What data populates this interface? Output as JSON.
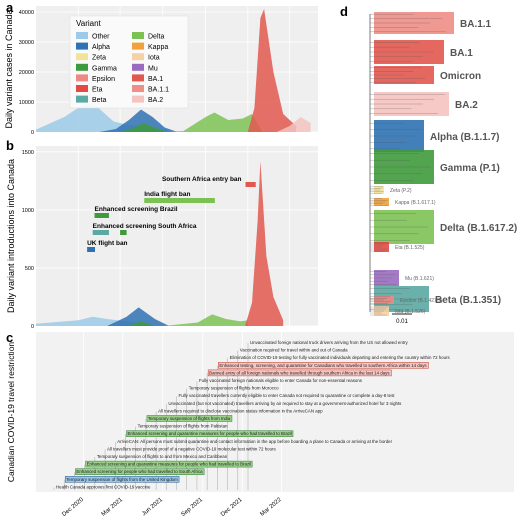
{
  "chart_data": [
    {
      "panel": "a",
      "type": "area",
      "ylabel": "Daily variant cases in Canada",
      "yticks": [
        0,
        10000,
        20000,
        30000,
        40000
      ],
      "ylim": [
        0,
        42000
      ],
      "grid": true,
      "legend": {
        "title": "Variant",
        "placement": "top-left",
        "entries": [
          {
            "name": "Other",
            "color": "#9ccae8"
          },
          {
            "name": "Alpha",
            "color": "#2f72b3"
          },
          {
            "name": "Zeta",
            "color": "#f3e39a"
          },
          {
            "name": "Gamma",
            "color": "#3f9a3c"
          },
          {
            "name": "Epsilon",
            "color": "#ec8a83"
          },
          {
            "name": "Eta",
            "color": "#e34a44"
          },
          {
            "name": "Beta",
            "color": "#5aa9a3"
          },
          {
            "name": "Delta",
            "color": "#7cc253"
          },
          {
            "name": "Kappa",
            "color": "#f2a23c"
          },
          {
            "name": "Iota",
            "color": "#f6d1a6"
          },
          {
            "name": "Mu",
            "color": "#9a6cc0"
          },
          {
            "name": "BA.1",
            "color": "#e2584f"
          },
          {
            "name": "BA.1.1",
            "color": "#ee8e86"
          },
          {
            "name": "BA.2",
            "color": "#f5c3c0"
          }
        ]
      },
      "series": [
        {
          "name": "Other",
          "x": [
            "2020-09-01",
            "2020-11-01",
            "2020-12-15",
            "2021-01-10",
            "2021-02-15",
            "2021-03-15",
            "2021-04-10",
            "2021-05-15",
            "2021-06-30",
            "2021-08-15",
            "2021-10-01",
            "2021-11-15",
            "2022-02-01",
            "2022-04-01"
          ],
          "values": [
            800,
            5000,
            9500,
            8500,
            3500,
            2500,
            2000,
            1000,
            200,
            100,
            100,
            100,
            100,
            100
          ]
        },
        {
          "name": "Alpha",
          "x": [
            "2021-01-15",
            "2021-02-20",
            "2021-03-20",
            "2021-04-15",
            "2021-05-10",
            "2021-06-05",
            "2021-07-01"
          ],
          "values": [
            0,
            1000,
            4000,
            7500,
            5000,
            1500,
            100
          ]
        },
        {
          "name": "Gamma",
          "x": [
            "2021-03-01",
            "2021-04-01",
            "2021-04-20",
            "2021-05-15",
            "2021-06-10"
          ],
          "values": [
            0,
            1500,
            3000,
            1500,
            0
          ]
        },
        {
          "name": "Delta",
          "x": [
            "2021-06-01",
            "2021-07-15",
            "2021-09-01",
            "2021-09-20",
            "2021-10-20",
            "2021-11-20",
            "2021-12-10",
            "2022-01-01"
          ],
          "values": [
            0,
            300,
            5000,
            6500,
            4000,
            4500,
            6000,
            0
          ]
        },
        {
          "name": "BA.1",
          "x": [
            "2021-12-01",
            "2021-12-15",
            "2021-12-28",
            "2022-01-05",
            "2022-01-25",
            "2022-02-15",
            "2022-03-15"
          ],
          "values": [
            0,
            8000,
            38000,
            41000,
            20000,
            6000,
            2000
          ]
        },
        {
          "name": "BA.2",
          "x": [
            "2022-02-01",
            "2022-03-01",
            "2022-03-25",
            "2022-04-15"
          ],
          "values": [
            0,
            2000,
            5000,
            3000
          ]
        }
      ]
    },
    {
      "panel": "b",
      "type": "area",
      "ylabel": "Daily variant introductions into Canada",
      "yticks": [
        0,
        500,
        1000,
        1500
      ],
      "ylim": [
        0,
        1550
      ],
      "grid": true,
      "series": [
        {
          "name": "Other",
          "x": [
            "2020-09-01",
            "2020-12-01",
            "2021-01-01",
            "2021-02-01",
            "2021-03-15",
            "2021-05-01"
          ],
          "values": [
            20,
            50,
            80,
            60,
            40,
            10
          ]
        },
        {
          "name": "Alpha",
          "x": [
            "2021-02-01",
            "2021-03-15",
            "2021-04-10",
            "2021-05-15",
            "2021-06-15"
          ],
          "values": [
            0,
            80,
            160,
            60,
            0
          ]
        },
        {
          "name": "Gamma",
          "x": [
            "2021-03-15",
            "2021-04-15",
            "2021-05-15"
          ],
          "values": [
            0,
            40,
            0
          ]
        },
        {
          "name": "Delta",
          "x": [
            "2021-06-01",
            "2021-08-15",
            "2021-09-15",
            "2021-10-15",
            "2021-11-15",
            "2021-12-01"
          ],
          "values": [
            0,
            30,
            100,
            60,
            40,
            50
          ]
        },
        {
          "name": "BA.1",
          "x": [
            "2021-11-25",
            "2021-12-10",
            "2021-12-22",
            "2021-12-28",
            "2022-01-10",
            "2022-01-25",
            "2022-02-15"
          ],
          "values": [
            0,
            200,
            900,
            1420,
            600,
            250,
            50
          ]
        }
      ],
      "annotations": [
        {
          "label": "Southern Africa entry ban",
          "start": "2021-11-26",
          "end": "2021-12-18",
          "color": "#e2584f"
        },
        {
          "label": "India flight ban",
          "start": "2021-04-22",
          "end": "2021-09-21",
          "color": "#7cc253"
        },
        {
          "label": "Enhanced screening Brazil",
          "start": "2021-01-05",
          "end": "2021-02-05",
          "color": "#3f9a3c"
        },
        {
          "label": "",
          "start": "2021-03-01",
          "end": "2021-03-15",
          "color": "#3f9a3c"
        },
        {
          "label": "Enhanced screening South Africa",
          "start": "2021-01-01",
          "end": "2021-02-05",
          "color": "#5aa9a3"
        },
        {
          "label": "UK flight ban",
          "start": "2020-12-20",
          "end": "2021-01-06",
          "color": "#2f72b3"
        }
      ]
    },
    {
      "panel": "c",
      "type": "table",
      "ylabel": "Canadian COVID-19 travel restriction",
      "xticks": [
        "Dec 2020",
        "Mar 2021",
        "Jun 2021",
        "Sep 2021",
        "Dec 2021",
        "Mar 2022"
      ],
      "events": [
        {
          "text": "Unvaccinated foreign national truck drivers arriving from the US not allowed entry",
          "highlight": "none"
        },
        {
          "text": "Vaccination required for travel within and out of Canada",
          "highlight": "none"
        },
        {
          "text": "Elimination of COVID-19 testing for fully vaccinated individuals departing and entering the country within 72 hours",
          "highlight": "none"
        },
        {
          "text": "Enhanced testing, screening, and quarantine for Canadians who travelled to southern Africa within 14 days",
          "highlight": "red"
        },
        {
          "text": "Banned entry of all foreign nationals who travelled through southern Africa in the last 14 days",
          "highlight": "red"
        },
        {
          "text": "Fully vaccinated foreign nationals eligible to enter Canada for non-essential reasons",
          "highlight": "none"
        },
        {
          "text": "Temporary suspension of flights from Morocco",
          "highlight": "none"
        },
        {
          "text": "Fully vaccinated travellers currently eligible to enter Canada not required to quarantine or complete a day-8 test",
          "highlight": "none"
        },
        {
          "text": "Unvaccinated (but not vaccinated) travellers arriving by air required to stay at a government-authorized hotel for 3 nights",
          "highlight": "none"
        },
        {
          "text": "All travellers required to disclose vaccination status information in the ArriveCAN app",
          "highlight": "none"
        },
        {
          "text": "Temporary suspension of flights from India",
          "highlight": "green"
        },
        {
          "text": "Temporary suspension of flights from Pakistan",
          "highlight": "none"
        },
        {
          "text": "Enhanced screening and quarantine measures for people who had travelled to Brazil",
          "highlight": "green"
        },
        {
          "text": "ArriveCAN: All persons must submit quarantine and contact information in the app before boarding a plane to Canada or arriving at the border",
          "highlight": "none"
        },
        {
          "text": "All travellers must provide proof of a negative COVID-19 molecular test within 72 hours",
          "highlight": "none"
        },
        {
          "text": "Temporary suspension of flights to and from Mexico and Caribbean",
          "highlight": "none"
        },
        {
          "text": "Enhanced screening and quarantine measures for people who had travelled to Brazil",
          "highlight": "green"
        },
        {
          "text": "Enhanced screening for people who had travelled to South Africa",
          "highlight": "green"
        },
        {
          "text": "Temporary suspension of flights from the United Kingdom",
          "highlight": "blue"
        },
        {
          "text": "Health Canada approves first COVID-19 vaccine",
          "highlight": "none"
        }
      ]
    },
    {
      "panel": "d",
      "type": "tree",
      "scale_label": "0.01",
      "clades": [
        {
          "label": "BA.1.1",
          "color": "#ee8e86",
          "size": "large"
        },
        {
          "label": "BA.1",
          "color": "#e2584f",
          "size": "large"
        },
        {
          "label": "Omicron",
          "color": "#e2584f",
          "size": "large"
        },
        {
          "label": "BA.2",
          "color": "#f5c3c0",
          "size": "large"
        },
        {
          "label": "Alpha (B.1.1.7)",
          "color": "#2f72b3",
          "size": "large"
        },
        {
          "label": "Gamma (P.1)",
          "color": "#3f9a3c",
          "size": "large"
        },
        {
          "label": "Zeta (P.2)",
          "color": "#f3e39a",
          "size": "small"
        },
        {
          "label": "Kappa (B.1.617.1)",
          "color": "#f2a23c",
          "size": "small"
        },
        {
          "label": "Delta (B.1.617.2)",
          "color": "#7cc253",
          "size": "large"
        },
        {
          "label": "Eta (B.1.525)",
          "color": "#e34a44",
          "size": "small"
        },
        {
          "label": "Mu (B.1.621)",
          "color": "#9a6cc0",
          "size": "small"
        },
        {
          "label": "Beta (B.1.351)",
          "color": "#5aa9a3",
          "size": "large"
        },
        {
          "label": "Epsilon (B.1.427/9)",
          "color": "#ec8a83",
          "size": "small"
        },
        {
          "label": "Iota (B.1.526)",
          "color": "#f6d1a6",
          "size": "small"
        }
      ]
    }
  ],
  "panel_letters": [
    "a",
    "b",
    "c",
    "d"
  ]
}
